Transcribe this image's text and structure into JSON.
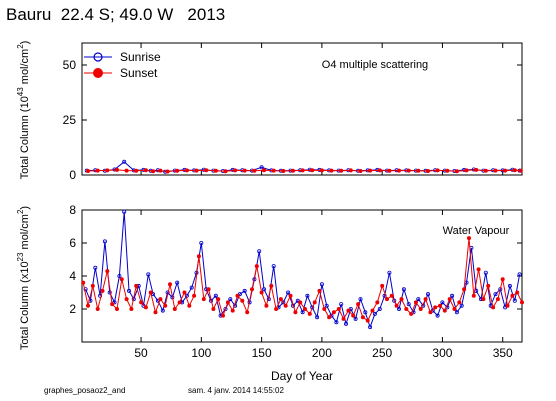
{
  "header": {
    "title": "Bauru  22.4 S; 49.0 W   2013"
  },
  "footer": {
    "left": "graphes_posaoz2_and",
    "right": "sam. 4 janv. 2014 14:55:02"
  },
  "chart_data": [
    {
      "type": "line",
      "title": "",
      "annotation": "O4 multiple scattering",
      "ylabel": "Total Column (10^43 mol/cm^2)",
      "xlabel": "",
      "xlim": [
        1,
        366
      ],
      "ylim": [
        0,
        60
      ],
      "yticks": [
        0,
        25,
        50
      ],
      "xticks": [
        50,
        100,
        150,
        200,
        250,
        300,
        350
      ],
      "grid": false,
      "legend": {
        "position": "top-left",
        "entries": [
          "Sunrise",
          "Sunset"
        ]
      },
      "series": [
        {
          "name": "Sunrise",
          "color": "#0000cc",
          "marker": "open-circle",
          "x": [
            5,
            12,
            20,
            28,
            36,
            44,
            52,
            58,
            64,
            70,
            78,
            86,
            94,
            102,
            110,
            118,
            126,
            134,
            142,
            150,
            158,
            166,
            174,
            182,
            190,
            198,
            206,
            214,
            222,
            230,
            238,
            246,
            254,
            262,
            270,
            278,
            286,
            294,
            302,
            310,
            318,
            326,
            334,
            342,
            350,
            358,
            364
          ],
          "y": [
            2.0,
            2.2,
            1.9,
            2.5,
            6.0,
            2.1,
            2.3,
            1.9,
            2.2,
            1.5,
            2.0,
            2.3,
            2.1,
            2.4,
            2.0,
            1.8,
            2.3,
            2.2,
            2.0,
            3.5,
            2.1,
            1.9,
            2.0,
            2.2,
            2.4,
            2.3,
            2.1,
            2.0,
            2.2,
            1.9,
            2.1,
            2.3,
            2.0,
            2.2,
            2.1,
            2.0,
            1.9,
            2.2,
            2.0,
            1.8,
            2.3,
            2.5,
            2.0,
            2.2,
            2.1,
            2.4,
            2.0
          ]
        },
        {
          "name": "Sunset",
          "color": "#ee0000",
          "marker": "filled-circle",
          "x": [
            6,
            14,
            22,
            30,
            38,
            46,
            54,
            60,
            66,
            72,
            80,
            88,
            96,
            104,
            112,
            120,
            128,
            136,
            144,
            152,
            160,
            168,
            176,
            184,
            192,
            200,
            208,
            216,
            224,
            232,
            240,
            248,
            256,
            264,
            272,
            280,
            288,
            296,
            304,
            312,
            320,
            328,
            336,
            344,
            352,
            360,
            365
          ],
          "y": [
            1.8,
            2.0,
            2.1,
            2.3,
            2.0,
            1.9,
            2.2,
            1.7,
            2.0,
            1.6,
            1.9,
            2.1,
            2.0,
            2.2,
            1.9,
            1.7,
            2.1,
            2.0,
            1.9,
            2.2,
            2.0,
            1.8,
            1.9,
            2.1,
            2.2,
            2.1,
            2.0,
            1.9,
            2.1,
            1.8,
            2.0,
            2.1,
            1.9,
            2.0,
            2.0,
            1.9,
            1.8,
            2.1,
            1.9,
            1.7,
            2.1,
            2.3,
            1.9,
            2.0,
            2.0,
            2.2,
            1.9
          ]
        }
      ]
    },
    {
      "type": "line",
      "title": "",
      "annotation": "Water Vapour",
      "ylabel": "Total Column (x10^23 mol/cm^2)",
      "xlabel": "Day of Year",
      "xlim": [
        1,
        366
      ],
      "ylim": [
        0,
        8
      ],
      "yticks": [
        2,
        4,
        6,
        8
      ],
      "xticks": [
        50,
        100,
        150,
        200,
        250,
        300,
        350
      ],
      "grid": false,
      "series": [
        {
          "name": "Sunrise",
          "color": "#0000cc",
          "marker": "open-circle",
          "x": [
            4,
            8,
            12,
            16,
            20,
            24,
            28,
            32,
            36,
            40,
            44,
            48,
            52,
            56,
            60,
            64,
            68,
            72,
            76,
            80,
            84,
            88,
            92,
            96,
            100,
            104,
            108,
            112,
            116,
            120,
            124,
            128,
            132,
            136,
            140,
            144,
            148,
            152,
            156,
            160,
            164,
            168,
            172,
            176,
            180,
            184,
            188,
            192,
            196,
            200,
            204,
            208,
            212,
            216,
            220,
            224,
            228,
            232,
            236,
            240,
            244,
            248,
            252,
            256,
            260,
            264,
            268,
            272,
            276,
            280,
            284,
            288,
            292,
            296,
            300,
            304,
            308,
            312,
            316,
            320,
            324,
            328,
            332,
            336,
            340,
            344,
            348,
            352,
            356,
            360,
            364
          ],
          "y": [
            3.2,
            2.5,
            4.5,
            2.8,
            6.1,
            3.0,
            2.4,
            4.0,
            7.9,
            3.1,
            2.6,
            3.4,
            2.2,
            4.1,
            2.9,
            2.5,
            1.9,
            3.0,
            2.7,
            3.6,
            2.4,
            2.8,
            3.3,
            4.2,
            6.0,
            3.2,
            2.5,
            2.8,
            1.6,
            2.0,
            2.6,
            2.2,
            2.9,
            3.1,
            2.4,
            3.8,
            5.5,
            3.2,
            2.6,
            4.6,
            2.1,
            2.4,
            3.0,
            2.2,
            2.5,
            1.8,
            2.8,
            2.1,
            1.5,
            3.5,
            2.2,
            1.6,
            1.2,
            2.3,
            1.1,
            2.0,
            1.4,
            2.6,
            1.8,
            0.9,
            1.7,
            2.0,
            2.8,
            4.2,
            2.5,
            2.0,
            3.2,
            2.3,
            1.8,
            2.6,
            2.2,
            2.9,
            1.9,
            1.6,
            2.4,
            2.1,
            2.8,
            1.8,
            2.2,
            3.6,
            5.7,
            3.1,
            2.6,
            4.2,
            2.2,
            2.9,
            3.2,
            2.1,
            3.4,
            2.5,
            4.1
          ]
        },
        {
          "name": "Sunset",
          "color": "#ee0000",
          "marker": "filled-circle",
          "x": [
            2,
            6,
            10,
            14,
            18,
            22,
            26,
            30,
            34,
            38,
            42,
            46,
            50,
            54,
            58,
            62,
            66,
            70,
            74,
            78,
            82,
            86,
            90,
            94,
            98,
            102,
            106,
            110,
            114,
            118,
            122,
            126,
            130,
            134,
            138,
            142,
            146,
            150,
            154,
            158,
            162,
            166,
            170,
            174,
            178,
            182,
            186,
            190,
            194,
            198,
            202,
            206,
            210,
            214,
            218,
            222,
            226,
            230,
            234,
            238,
            242,
            246,
            250,
            254,
            258,
            262,
            266,
            270,
            274,
            278,
            282,
            286,
            290,
            294,
            298,
            302,
            306,
            310,
            314,
            318,
            322,
            326,
            330,
            334,
            338,
            342,
            346,
            350,
            354,
            358,
            362,
            366
          ],
          "y": [
            3.6,
            2.2,
            3.4,
            2.0,
            3.1,
            4.3,
            2.3,
            2.0,
            3.8,
            2.6,
            2.0,
            3.4,
            2.4,
            2.1,
            3.0,
            1.8,
            2.6,
            2.2,
            3.5,
            2.0,
            2.4,
            3.0,
            2.2,
            2.8,
            5.2,
            2.6,
            3.2,
            2.0,
            2.6,
            1.6,
            2.4,
            1.9,
            2.8,
            2.5,
            1.8,
            3.2,
            4.6,
            3.0,
            2.2,
            3.4,
            2.0,
            2.6,
            2.2,
            2.8,
            1.8,
            2.4,
            2.0,
            1.7,
            2.4,
            3.1,
            2.0,
            1.5,
            1.8,
            2.0,
            1.4,
            1.9,
            1.6,
            2.3,
            1.5,
            1.3,
            1.9,
            2.4,
            3.4,
            2.6,
            2.8,
            2.2,
            2.6,
            2.0,
            1.7,
            2.4,
            2.0,
            2.6,
            1.8,
            2.1,
            2.2,
            1.9,
            2.6,
            2.0,
            2.4,
            3.2,
            6.3,
            2.8,
            4.4,
            2.6,
            3.4,
            2.1,
            2.6,
            3.8,
            2.2,
            2.8,
            3.0,
            2.4
          ]
        }
      ]
    }
  ]
}
